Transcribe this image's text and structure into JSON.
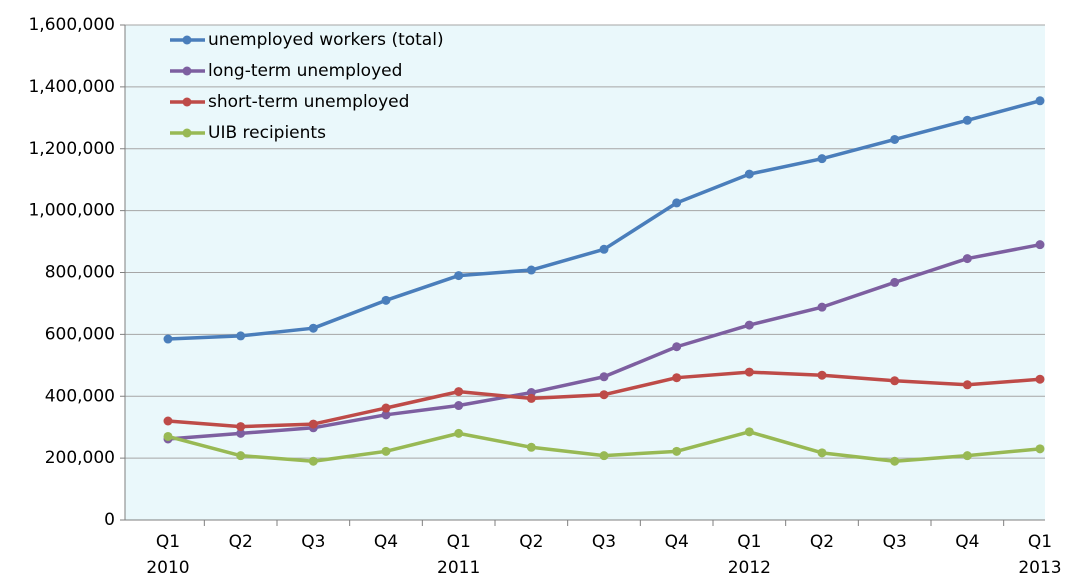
{
  "chart_data": {
    "type": "line",
    "categories": [
      "Q1",
      "Q2",
      "Q3",
      "Q4",
      "Q1",
      "Q2",
      "Q3",
      "Q4",
      "Q1",
      "Q2",
      "Q3",
      "Q4",
      "Q1"
    ],
    "category_years": [
      "2010",
      null,
      null,
      null,
      "2011",
      null,
      null,
      null,
      "2012",
      null,
      null,
      null,
      "2013"
    ],
    "series": [
      {
        "name": "unemployed workers (total)",
        "color": "#4a7ebb",
        "values": [
          585000,
          595000,
          620000,
          710000,
          790000,
          808000,
          875000,
          1025000,
          1118000,
          1168000,
          1230000,
          1292000,
          1355000
        ]
      },
      {
        "name": "long-term unemployed",
        "color": "#7d5fa0",
        "values": [
          262000,
          280000,
          298000,
          340000,
          370000,
          412000,
          463000,
          560000,
          630000,
          688000,
          768000,
          845000,
          890000
        ]
      },
      {
        "name": "short-term unemployed",
        "color": "#be4b48",
        "values": [
          320000,
          302000,
          310000,
          362000,
          415000,
          393000,
          405000,
          460000,
          478000,
          468000,
          450000,
          437000,
          455000
        ]
      },
      {
        "name": "UIB recipients",
        "color": "#98b954",
        "values": [
          270000,
          208000,
          190000,
          222000,
          280000,
          235000,
          208000,
          222000,
          285000,
          217000,
          190000,
          208000,
          230000
        ]
      }
    ],
    "ylim": [
      0,
      1600000
    ],
    "yticks": [
      0,
      {
        "value": 200000,
        "label": "200,000"
      },
      {
        "value": 400000,
        "label": "400,000"
      },
      {
        "value": 600000,
        "label": "600,000"
      },
      {
        "value": 800000,
        "label": "800,000"
      },
      {
        "value": 1000000,
        "label": "1,000,000"
      },
      {
        "value": 1200000,
        "label": "1,200,000"
      },
      {
        "value": 1400000,
        "label": "1,400,000"
      },
      {
        "value": 1600000,
        "label": "1,600,000"
      }
    ],
    "grid": true,
    "legend": "top-left"
  }
}
